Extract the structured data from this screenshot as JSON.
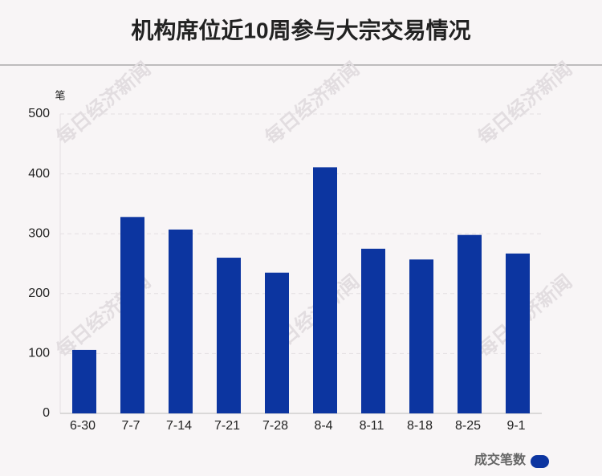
{
  "chart_data": {
    "type": "bar",
    "title": "机构席位近10周参与大宗交易情况",
    "y_label": "笔",
    "categories": [
      "6-30",
      "7-7",
      "7-14",
      "7-21",
      "7-28",
      "8-4",
      "8-11",
      "8-18",
      "8-25",
      "9-1"
    ],
    "series": [
      {
        "name": "成交笔数",
        "color": "#0c35a0",
        "values": [
          106,
          328,
          307,
          260,
          235,
          411,
          275,
          257,
          298,
          267
        ]
      }
    ],
    "ylim": [
      0,
      500
    ],
    "yticks": [
      0,
      100,
      200,
      300,
      400,
      500
    ],
    "grid": true,
    "legend": "bottom-right",
    "watermark": "每日经济新闻"
  }
}
